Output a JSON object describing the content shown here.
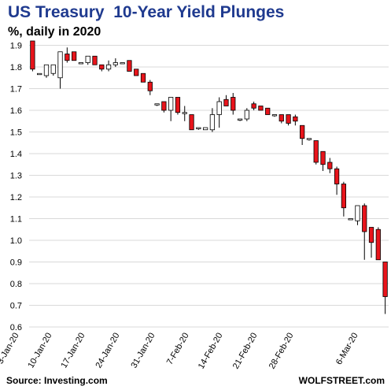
{
  "chart_data": {
    "type": "candlestick",
    "title": "US Treasury  10-Year Yield Plunges",
    "subtitle": "%, daily in 2020",
    "ylim": [
      0.6,
      1.92
    ],
    "yticks": [
      "0.6",
      "0.7",
      "0.8",
      "0.9",
      "1.0",
      "1.1",
      "1.2",
      "1.3",
      "1.4",
      "1.5",
      "1.6",
      "1.7",
      "1.8",
      "1.9"
    ],
    "xtick_labels": [
      "3-Jan-20",
      "10-Jan-20",
      "17-Jan-20",
      "24-Jan-20",
      "31-Jan-20",
      "7-Feb-20",
      "14-Feb-20",
      "21-Feb-20",
      "28-Feb-20",
      "6-Mar-20"
    ],
    "grid": "horizontal",
    "up_color": "#ffffff",
    "down_color": "#e8141b",
    "candles": [
      {
        "date": "3-Jan-20",
        "open": 1.92,
        "high": 1.92,
        "low": 1.78,
        "close": 1.79
      },
      {
        "date": "6-Jan-20",
        "open": 1.77,
        "high": 1.77,
        "low": 1.77,
        "close": 1.77
      },
      {
        "date": "7-Jan-20",
        "open": 1.76,
        "high": 1.81,
        "low": 1.75,
        "close": 1.81
      },
      {
        "date": "8-Jan-20",
        "open": 1.77,
        "high": 1.81,
        "low": 1.76,
        "close": 1.81
      },
      {
        "date": "9-Jan-20",
        "open": 1.75,
        "high": 1.87,
        "low": 1.7,
        "close": 1.87
      },
      {
        "date": "10-Jan-20",
        "open": 1.86,
        "high": 1.89,
        "low": 1.82,
        "close": 1.83
      },
      {
        "date": "13-Jan-20",
        "open": 1.87,
        "high": 1.87,
        "low": 1.83,
        "close": 1.83
      },
      {
        "date": "14-Jan-20",
        "open": 1.82,
        "high": 1.82,
        "low": 1.82,
        "close": 1.82
      },
      {
        "date": "15-Jan-20",
        "open": 1.82,
        "high": 1.85,
        "low": 1.81,
        "close": 1.85
      },
      {
        "date": "16-Jan-20",
        "open": 1.85,
        "high": 1.85,
        "low": 1.81,
        "close": 1.81
      },
      {
        "date": "17-Jan-20",
        "open": 1.81,
        "high": 1.81,
        "low": 1.78,
        "close": 1.79
      },
      {
        "date": "21-Jan-20",
        "open": 1.79,
        "high": 1.83,
        "low": 1.78,
        "close": 1.81
      },
      {
        "date": "22-Jan-20",
        "open": 1.81,
        "high": 1.84,
        "low": 1.8,
        "close": 1.82
      },
      {
        "date": "24-Jan-20",
        "open": 1.82,
        "high": 1.82,
        "low": 1.82,
        "close": 1.82
      },
      {
        "date": "27-Jan-20",
        "open": 1.83,
        "high": 1.83,
        "low": 1.78,
        "close": 1.78
      },
      {
        "date": "28-Jan-20",
        "open": 1.79,
        "high": 1.79,
        "low": 1.76,
        "close": 1.76
      },
      {
        "date": "29-Jan-20",
        "open": 1.77,
        "high": 1.77,
        "low": 1.73,
        "close": 1.73
      },
      {
        "date": "30-Jan-20",
        "open": 1.73,
        "high": 1.74,
        "low": 1.67,
        "close": 1.69
      },
      {
        "date": "31-Jan-20",
        "open": 1.63,
        "high": 1.63,
        "low": 1.62,
        "close": 1.63
      },
      {
        "date": "3-Feb-20",
        "open": 1.64,
        "high": 1.64,
        "low": 1.59,
        "close": 1.6
      },
      {
        "date": "4-Feb-20",
        "open": 1.6,
        "high": 1.66,
        "low": 1.55,
        "close": 1.66
      },
      {
        "date": "5-Feb-20",
        "open": 1.66,
        "high": 1.66,
        "low": 1.58,
        "close": 1.59
      },
      {
        "date": "6-Feb-20",
        "open": 1.59,
        "high": 1.62,
        "low": 1.55,
        "close": 1.59
      },
      {
        "date": "7-Feb-20",
        "open": 1.58,
        "high": 1.58,
        "low": 1.51,
        "close": 1.51
      },
      {
        "date": "10-Feb-20",
        "open": 1.52,
        "high": 1.52,
        "low": 1.51,
        "close": 1.52
      },
      {
        "date": "11-Feb-20",
        "open": 1.51,
        "high": 1.52,
        "low": 1.51,
        "close": 1.52
      },
      {
        "date": "12-Feb-20",
        "open": 1.51,
        "high": 1.61,
        "low": 1.5,
        "close": 1.58
      },
      {
        "date": "13-Feb-20",
        "open": 1.58,
        "high": 1.66,
        "low": 1.52,
        "close": 1.64
      },
      {
        "date": "14-Feb-20",
        "open": 1.65,
        "high": 1.67,
        "low": 1.62,
        "close": 1.62
      },
      {
        "date": "18-Feb-20",
        "open": 1.66,
        "high": 1.68,
        "low": 1.58,
        "close": 1.6
      },
      {
        "date": "19-Feb-20",
        "open": 1.56,
        "high": 1.56,
        "low": 1.55,
        "close": 1.56
      },
      {
        "date": "20-Feb-20",
        "open": 1.56,
        "high": 1.61,
        "low": 1.55,
        "close": 1.6
      },
      {
        "date": "21-Feb-20",
        "open": 1.63,
        "high": 1.64,
        "low": 1.6,
        "close": 1.61
      },
      {
        "date": "24-Feb-20",
        "open": 1.62,
        "high": 1.62,
        "low": 1.6,
        "close": 1.6
      },
      {
        "date": "25-Feb-20",
        "open": 1.61,
        "high": 1.61,
        "low": 1.58,
        "close": 1.58
      },
      {
        "date": "26-Feb-20",
        "open": 1.58,
        "high": 1.58,
        "low": 1.57,
        "close": 1.58
      },
      {
        "date": "27-Feb-20",
        "open": 1.58,
        "high": 1.58,
        "low": 1.54,
        "close": 1.55
      },
      {
        "date": "28-Feb-20",
        "open": 1.58,
        "high": 1.58,
        "low": 1.53,
        "close": 1.54
      },
      {
        "date": "2-Mar-20",
        "open": 1.57,
        "high": 1.58,
        "low": 1.53,
        "close": 1.55
      },
      {
        "date": "3-Mar-20",
        "open": 1.53,
        "high": 1.53,
        "low": 1.44,
        "close": 1.47
      },
      {
        "date": "4-Mar-20",
        "open": 1.47,
        "high": 1.47,
        "low": 1.46,
        "close": 1.47
      },
      {
        "date": "5-Mar-20",
        "open": 1.46,
        "high": 1.46,
        "low": 1.35,
        "close": 1.36
      },
      {
        "date": "6-Mar-20",
        "open": 1.41,
        "high": 1.41,
        "low": 1.32,
        "close": 1.35
      },
      {
        "date": "6-Mar-20b",
        "open": 1.36,
        "high": 1.38,
        "low": 1.31,
        "close": 1.33
      },
      {
        "date": "6-Mar-20c",
        "open": 1.33,
        "high": 1.34,
        "low": 1.21,
        "close": 1.26
      },
      {
        "date": "6-Mar-20d",
        "open": 1.26,
        "high": 1.27,
        "low": 1.11,
        "close": 1.15
      },
      {
        "date": "6-Mar-20e",
        "open": 1.1,
        "high": 1.1,
        "low": 1.1,
        "close": 1.1
      },
      {
        "date": "6-Mar-20f",
        "open": 1.09,
        "high": 1.16,
        "low": 1.07,
        "close": 1.16
      },
      {
        "date": "6-Mar-20g",
        "open": 1.16,
        "high": 1.17,
        "low": 0.91,
        "close": 1.04
      },
      {
        "date": "6-Mar-20h",
        "open": 1.06,
        "high": 1.06,
        "low": 0.92,
        "close": 0.99
      },
      {
        "date": "6-Mar-20i",
        "open": 1.05,
        "high": 1.06,
        "low": 0.91,
        "close": 0.91
      },
      {
        "date": "6-Mar-20j",
        "open": 0.9,
        "high": 0.9,
        "low": 0.66,
        "close": 0.74
      }
    ]
  },
  "footer": {
    "source": "Source: Investing.com",
    "brand": "WOLFSTREET.com"
  }
}
